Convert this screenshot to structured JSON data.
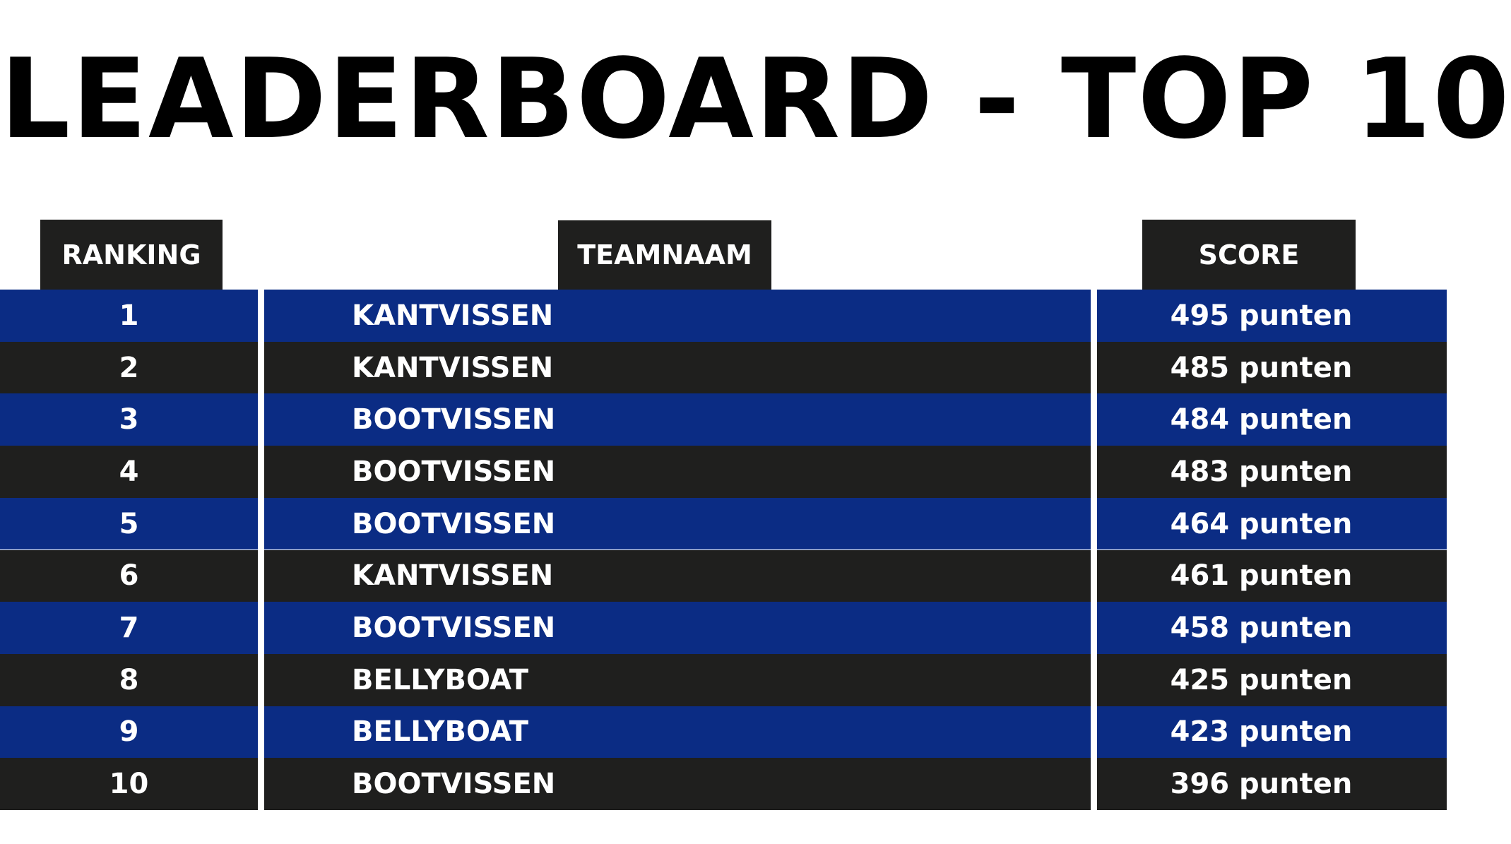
{
  "title": "LEADERBOARD - TOP 10",
  "headers": {
    "ranking": "RANKING",
    "teamname": "TEAMNAAM",
    "score": "SCORE"
  },
  "colors": {
    "blue_row": "#0b2c84",
    "dark_row": "#1f1f1e",
    "text": "#ffffff",
    "title": "#000000"
  },
  "rows": [
    {
      "rank": "1",
      "team": "KANTVISSEN",
      "score": "495 punten"
    },
    {
      "rank": "2",
      "team": "KANTVISSEN",
      "score": "485 punten"
    },
    {
      "rank": "3",
      "team": "BOOTVISSEN",
      "score": "484 punten"
    },
    {
      "rank": "4",
      "team": "BOOTVISSEN",
      "score": "483 punten"
    },
    {
      "rank": "5",
      "team": "BOOTVISSEN",
      "score": "464 punten"
    },
    {
      "rank": "6",
      "team": "KANTVISSEN",
      "score": "461 punten"
    },
    {
      "rank": "7",
      "team": "BOOTVISSEN",
      "score": "458 punten"
    },
    {
      "rank": "8",
      "team": "BELLYBOAT",
      "score": "425 punten"
    },
    {
      "rank": "9",
      "team": "BELLYBOAT",
      "score": "423 punten"
    },
    {
      "rank": "10",
      "team": "BOOTVISSEN",
      "score": "396 punten"
    }
  ]
}
